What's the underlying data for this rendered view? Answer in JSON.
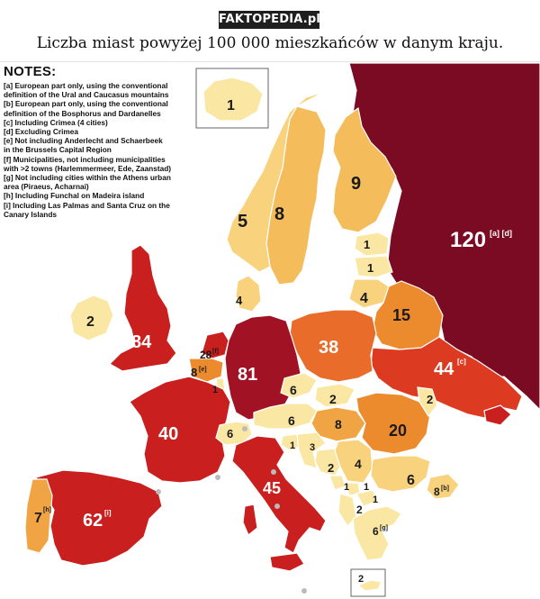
{
  "brand": {
    "text": "FAKTOPEDIA.pl"
  },
  "caption": "Liczba miast powyżej 100 000 mieszkańców w danym kraju.",
  "notes": {
    "title": "NOTES:",
    "items": [
      "[a] European part only, using the conventional",
      "definition of the Ural and Caucasus mountains",
      "[b] European part only, using the conventional",
      "definition of the Bosphorus and Dardanelles",
      "[c] Including Crimea (4 cities)",
      "[d] Excluding Crimea",
      "[e] Not including Anderlecht and Schaerbeek",
      "in the Brussels Capital Region",
      "[f] Municipalities, not including municipalities",
      "with >2 towns (Harlemmermeer, Ede, Zaanstad)",
      "[g] Not including cities within the Athens urban",
      "area (Piraeus, Acharnai)",
      "[h] Including Funchal on Madeira island",
      "[i] Including Las Palmas and Santa Cruz on the",
      "Canary Islands"
    ]
  },
  "colors": {
    "c1": "#fbe7a4",
    "c2": "#f8d27c",
    "c3": "#f4bc5b",
    "c4": "#f0a444",
    "c5": "#ec8b2e",
    "c6": "#ea6c2a",
    "c7": "#dd3b21",
    "c8": "#c91f1e",
    "c9": "#a01224",
    "c10": "#7a0b22",
    "sea": "#ffffff",
    "border": "#ffffff"
  },
  "countries": {
    "iceland": "1",
    "ireland": "2",
    "uk": "84",
    "norway": "5",
    "sweden": "8",
    "finland": "9",
    "russia": "120",
    "russia_note": "[a] [d]",
    "estonia": "1",
    "latvia": "1",
    "lithuania": "4",
    "belarus": "15",
    "denmark": "4",
    "netherlands": "28",
    "netherlands_note": "[f]",
    "belgium": "8",
    "belgium_note": "[e]",
    "luxembourg": "1",
    "germany": "81",
    "poland": "38",
    "ukraine": "44",
    "ukraine_note": "[c]",
    "czechia": "6",
    "slovakia": "2",
    "moldova": "2",
    "france": "40",
    "switzerland": "6",
    "austria": "6",
    "hungary": "8",
    "romania": "20",
    "slovenia": "1",
    "croatia": "3",
    "bosnia": "2",
    "serbia": "4",
    "montenegro": "1",
    "kosovo": "1",
    "north_macedonia": "1",
    "albania": "2",
    "bulgaria": "6",
    "turkey": "8",
    "turkey_note": "[b]",
    "greece": "6",
    "greece_note": "[g]",
    "italy": "45",
    "spain": "62",
    "spain_note": "[i]",
    "portugal": "7",
    "portugal_note": "[h]",
    "cyprus": "2"
  }
}
